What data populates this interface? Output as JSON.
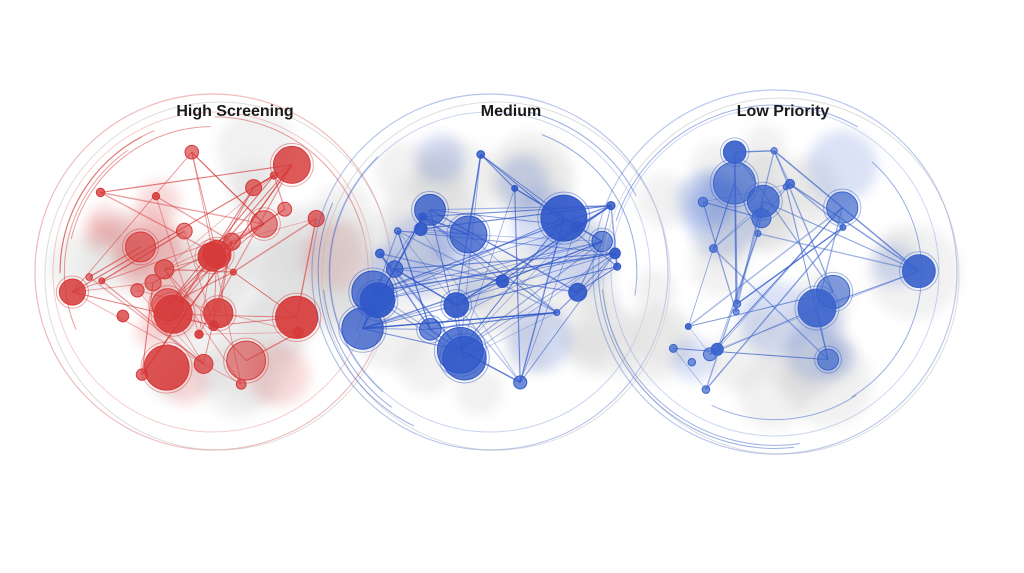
{
  "colors": {
    "high": "#d63a3a",
    "medium": "#2f57c8",
    "low": "#3a63cc",
    "blob": "#d9d9d9"
  },
  "panels": [
    {
      "key": "high",
      "title": "High Screening",
      "color": "#d63a3a",
      "seed": 11,
      "nodes": 34,
      "edges": 70
    },
    {
      "key": "medium",
      "title": "Medium",
      "color": "#2f57c8",
      "seed": 23,
      "nodes": 26,
      "edges": 110
    },
    {
      "key": "low",
      "title": "Low Priority",
      "color": "#3a63cc",
      "seed": 37,
      "nodes": 24,
      "edges": 48
    }
  ]
}
